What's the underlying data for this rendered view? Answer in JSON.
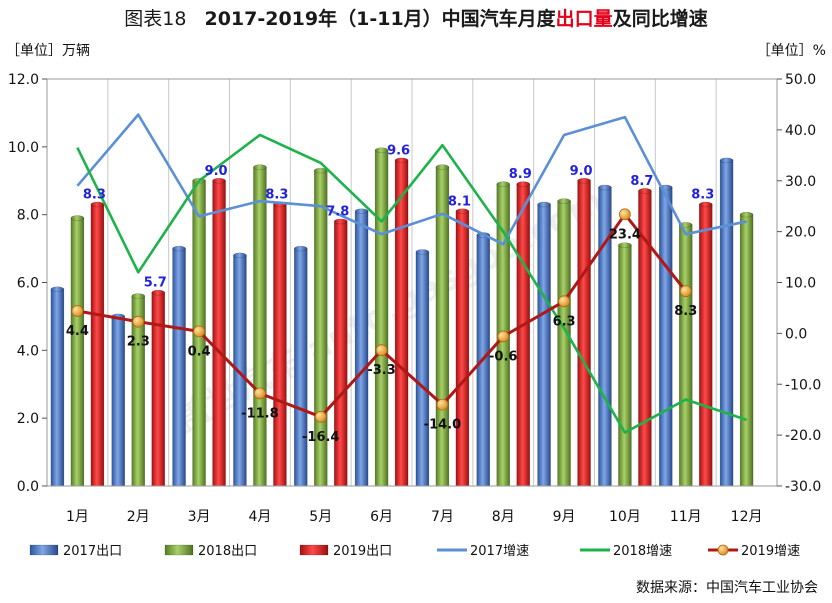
{
  "header": {
    "figure_label": "图表18",
    "title_before": "2017-2019年（1-11月）中国汽车月度",
    "title_highlight": "出口量",
    "title_after": "及同比增速"
  },
  "unit_left": "［单位］万辆",
  "unit_right": "［单位］%",
  "source": "数据来源：中国汽车工业协会",
  "watermark": "盖世汽车 auto.gasgoo.com",
  "colors": {
    "bar2017": "#3d6fc0",
    "bar2018": "#77a53a",
    "bar2019": "#d41f1f",
    "line2017": "#5b8fd6",
    "line2018": "#1db34a",
    "line2019": "#b01818",
    "marker2019": "#f0a030",
    "label2019_export": "#2222dd",
    "grid": "#c8c8c8"
  },
  "chart_data": {
    "type": "bar",
    "title": "2017-2019年（1-11月）中国汽车月度出口量及同比增速",
    "categories": [
      "1月",
      "2月",
      "3月",
      "4月",
      "5月",
      "6月",
      "7月",
      "8月",
      "9月",
      "10月",
      "11月",
      "12月"
    ],
    "y_left": {
      "label": "［单位］万辆",
      "range": [
        0,
        12
      ],
      "ticks": [
        "0.0",
        "2.0",
        "4.0",
        "6.0",
        "8.0",
        "10.0",
        "12.0"
      ]
    },
    "y_right": {
      "label": "［单位］%",
      "range": [
        -30,
        50
      ],
      "ticks": [
        "-30.0",
        "-20.0",
        "-10.0",
        "0.0",
        "10.0",
        "20.0",
        "30.0",
        "40.0",
        "50.0"
      ]
    },
    "grid": "vertical",
    "legend_position": "bottom",
    "bar_series": [
      {
        "name": "2017出口",
        "values": [
          5.8,
          5.0,
          7.0,
          6.8,
          7.0,
          8.1,
          6.9,
          7.4,
          8.3,
          8.8,
          8.8,
          9.6
        ]
      },
      {
        "name": "2018出口",
        "values": [
          7.9,
          5.6,
          9.0,
          9.4,
          9.3,
          9.9,
          9.4,
          8.9,
          8.4,
          7.1,
          7.7,
          8.0
        ]
      },
      {
        "name": "2019出口",
        "values": [
          8.3,
          5.7,
          9.0,
          8.3,
          7.8,
          9.6,
          8.1,
          8.9,
          9.0,
          8.7,
          8.3,
          null
        ],
        "labels": [
          "8.3",
          "5.7",
          "9.0",
          "8.3",
          "7.8",
          "9.6",
          "8.1",
          "8.9",
          "9.0",
          "8.7",
          "8.3",
          ""
        ]
      }
    ],
    "line_series": [
      {
        "name": "2017增速",
        "values": [
          29,
          43,
          23,
          26,
          25,
          19.5,
          23.5,
          17.5,
          39,
          42.5,
          19.5,
          22
        ]
      },
      {
        "name": "2018增速",
        "values": [
          36.5,
          12,
          30,
          39,
          33.5,
          22,
          37,
          20,
          1,
          -19.5,
          -13,
          -17
        ]
      },
      {
        "name": "2019增速",
        "values": [
          4.4,
          2.3,
          0.4,
          -11.8,
          -16.4,
          -3.3,
          -14.0,
          -0.6,
          6.3,
          23.4,
          8.3,
          null
        ],
        "labels": [
          "4.4",
          "2.3",
          "0.4",
          "-11.8",
          "-16.4",
          "-3.3",
          "-14.0",
          "-0.6",
          "6.3",
          "23.4",
          "8.3",
          ""
        ]
      }
    ]
  }
}
